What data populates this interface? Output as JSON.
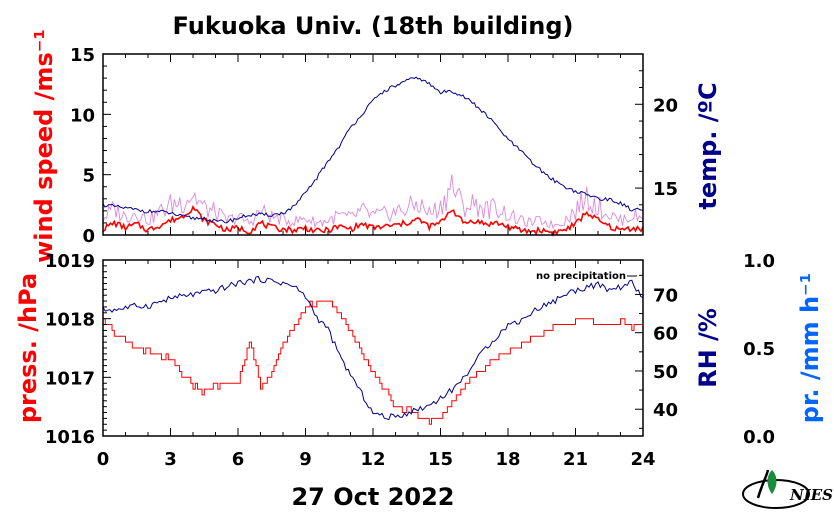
{
  "title": "Fukuoka Univ. (18th building)",
  "date_label": "27 Oct 2022",
  "colors": {
    "red": "#ff0000",
    "blue": "#00008b",
    "pink": "#dd88dd",
    "lightblue": "#0066ff",
    "green": "#1a8c3c"
  },
  "logo": "NIES",
  "chart_data": [
    {
      "type": "line",
      "panel": "top",
      "xlim": [
        0,
        24
      ],
      "xticks": [
        0,
        3,
        6,
        9,
        12,
        15,
        18,
        21,
        24
      ],
      "left_axis": {
        "label": "wind speed /ms⁻¹",
        "ylim": [
          0,
          15
        ],
        "ticks": [
          0,
          5,
          10,
          15
        ]
      },
      "right_axis": {
        "label": "temp. /ºC",
        "ylim": [
          12.2,
          23.0
        ],
        "ticks": [
          15,
          20
        ]
      },
      "series": [
        {
          "axis": "left",
          "color": "#ff0000",
          "style": "wind-mean",
          "x": [
            0,
            0.5,
            1,
            1.5,
            2,
            2.5,
            3,
            3.5,
            4,
            4.5,
            5,
            5.5,
            6,
            6.5,
            7,
            7.5,
            8,
            8.5,
            9,
            9.5,
            10,
            10.5,
            11,
            11.5,
            12,
            12.5,
            13,
            13.5,
            14,
            14.5,
            15,
            15.5,
            16,
            16.5,
            17,
            17.5,
            18,
            18.5,
            19,
            19.5,
            20,
            20.5,
            21,
            21.5,
            22,
            22.5,
            23,
            23.5,
            24
          ],
          "y": [
            0.5,
            1.0,
            0.6,
            0.9,
            0.4,
            0.8,
            1.2,
            1.5,
            2.3,
            1.2,
            0.9,
            0.4,
            0.6,
            0.3,
            1.0,
            0.6,
            0.5,
            0.4,
            0.6,
            0.3,
            0.4,
            0.7,
            0.5,
            0.9,
            0.6,
            0.7,
            0.8,
            1.0,
            1.3,
            0.7,
            1.0,
            2.2,
            1.0,
            1.2,
            0.9,
            1.0,
            0.7,
            0.4,
            0.3,
            0.4,
            0.2,
            0.4,
            0.9,
            1.9,
            1.2,
            0.7,
            0.4,
            0.6,
            0.5
          ]
        },
        {
          "axis": "left",
          "color": "#dd88dd",
          "style": "wind-gust",
          "x": [
            0,
            0.5,
            1,
            1.5,
            2,
            2.5,
            3,
            3.5,
            4,
            4.5,
            5,
            5.5,
            6,
            6.5,
            7,
            7.5,
            8,
            8.5,
            9,
            9.5,
            10,
            10.5,
            11,
            11.5,
            12,
            12.5,
            13,
            13.5,
            14,
            14.5,
            15,
            15.5,
            16,
            16.5,
            17,
            17.5,
            18,
            18.5,
            19,
            19.5,
            20,
            20.5,
            21,
            21.5,
            22,
            22.5,
            23,
            23.5,
            24
          ],
          "y": [
            1.4,
            2.2,
            1.5,
            1.9,
            1.2,
            1.9,
            2.5,
            2.8,
            3.4,
            2.2,
            1.9,
            1.2,
            1.5,
            1.0,
            2.0,
            1.5,
            1.3,
            1.1,
            1.4,
            1.0,
            1.2,
            1.6,
            1.4,
            2.0,
            1.6,
            1.7,
            1.9,
            2.2,
            2.6,
            1.8,
            2.3,
            4.2,
            2.3,
            2.6,
            2.1,
            2.3,
            1.7,
            1.2,
            1.0,
            1.2,
            0.8,
            1.2,
            2.0,
            3.2,
            2.4,
            1.7,
            1.2,
            1.6,
            1.4
          ]
        },
        {
          "axis": "right",
          "color": "#00008b",
          "style": "temperature",
          "x": [
            0,
            0.5,
            1,
            1.5,
            2,
            2.5,
            3,
            3.5,
            4,
            4.5,
            5,
            5.5,
            6,
            6.5,
            7,
            7.5,
            8,
            8.5,
            9,
            9.5,
            10,
            10.5,
            11,
            11.5,
            12,
            12.5,
            13,
            13.5,
            14,
            14.5,
            15,
            15.5,
            16,
            16.5,
            17,
            17.5,
            18,
            18.5,
            19,
            19.5,
            20,
            20.5,
            21,
            21.5,
            22,
            22.5,
            23,
            23.5,
            24
          ],
          "y": [
            14.0,
            13.9,
            13.8,
            13.7,
            13.6,
            13.6,
            13.5,
            13.3,
            13.2,
            13.2,
            13.0,
            13.0,
            13.2,
            13.4,
            13.4,
            13.4,
            13.5,
            13.9,
            14.7,
            15.6,
            16.6,
            17.5,
            18.6,
            19.4,
            20.2,
            20.8,
            21.1,
            21.4,
            21.6,
            21.2,
            20.7,
            20.8,
            20.5,
            20.0,
            19.4,
            18.7,
            17.9,
            17.3,
            16.6,
            16.0,
            15.5,
            15.1,
            14.8,
            14.6,
            14.4,
            14.3,
            14.1,
            13.7,
            13.7
          ]
        }
      ]
    },
    {
      "type": "line",
      "panel": "bottom",
      "xlim": [
        0,
        24
      ],
      "xticks": [
        0,
        3,
        6,
        9,
        12,
        15,
        18,
        21,
        24
      ],
      "xlabels": [
        "0",
        "3",
        "6",
        "9",
        "12",
        "15",
        "18",
        "21",
        "24"
      ],
      "left_axis": {
        "label": "press. /hPa",
        "ylim": [
          1016,
          1019
        ],
        "ticks": [
          1016,
          1017,
          1018,
          1019
        ]
      },
      "right_axis": {
        "label": "RH /%",
        "ylim": [
          33,
          79
        ],
        "ticks": [
          40,
          50,
          60,
          70
        ]
      },
      "far_right_axis": {
        "label": "pr. /mm h⁻¹",
        "ylim": [
          0,
          1
        ],
        "ticks": [
          "0.0",
          "0.5",
          "1.0"
        ]
      },
      "annotation": "no precipitation",
      "series": [
        {
          "axis": "left",
          "color": "#ff0000",
          "style": "step",
          "x": [
            0,
            0.5,
            1,
            1.5,
            2,
            2.5,
            3,
            3.5,
            4,
            4.5,
            5,
            5.5,
            6,
            6.5,
            7,
            7.5,
            8,
            8.5,
            9,
            9.5,
            10,
            10.5,
            11,
            11.5,
            12,
            12.5,
            13,
            13.5,
            14,
            14.5,
            15,
            15.5,
            16,
            16.5,
            17,
            17.5,
            18,
            18.5,
            19,
            19.5,
            20,
            20.5,
            21,
            21.5,
            22,
            22.5,
            23,
            23.5,
            24
          ],
          "y": [
            1018.0,
            1017.75,
            1017.6,
            1017.5,
            1017.45,
            1017.35,
            1017.3,
            1017.05,
            1016.85,
            1016.75,
            1016.85,
            1016.9,
            1016.95,
            1017.6,
            1016.8,
            1017.1,
            1017.6,
            1017.9,
            1018.2,
            1018.3,
            1018.3,
            1018.1,
            1017.8,
            1017.4,
            1017.1,
            1016.8,
            1016.5,
            1016.45,
            1016.35,
            1016.25,
            1016.3,
            1016.6,
            1016.85,
            1017.05,
            1017.15,
            1017.35,
            1017.45,
            1017.55,
            1017.65,
            1017.75,
            1017.85,
            1017.9,
            1017.95,
            1018.05,
            1017.9,
            1017.9,
            1017.95,
            1017.85,
            1017.9
          ]
        },
        {
          "axis": "right",
          "color": "#00008b",
          "style": "line",
          "x": [
            0,
            0.5,
            1,
            1.5,
            2,
            2.5,
            3,
            3.5,
            4,
            4.5,
            5,
            5.5,
            6,
            6.5,
            7,
            7.5,
            8,
            8.5,
            9,
            9.5,
            10,
            10.5,
            11,
            11.5,
            12,
            12.5,
            13,
            13.5,
            14,
            14.5,
            15,
            15.5,
            16,
            16.5,
            17,
            17.5,
            18,
            18.5,
            19,
            19.5,
            20,
            20.5,
            21,
            21.5,
            22,
            22.5,
            23,
            23.5,
            24
          ],
          "y": [
            66,
            66,
            66.5,
            67,
            67,
            68,
            69,
            69.5,
            70,
            70.5,
            71,
            72,
            73,
            73.5,
            74,
            73.5,
            73,
            72,
            69.5,
            64,
            61,
            54,
            49,
            44,
            39,
            38,
            38,
            39,
            40,
            41,
            43,
            45,
            48,
            52,
            56,
            59,
            62,
            63,
            65,
            67,
            68,
            70,
            71,
            72,
            72.5,
            71,
            72,
            73,
            69
          ]
        }
      ]
    }
  ]
}
